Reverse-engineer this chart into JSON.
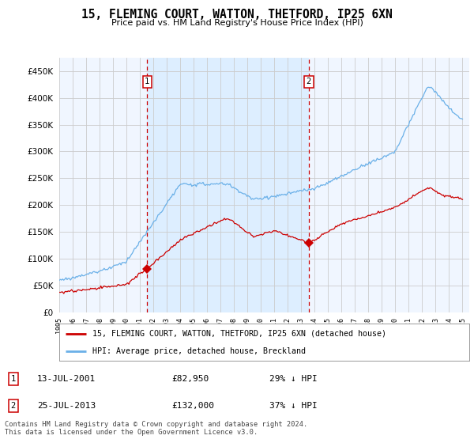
{
  "title": "15, FLEMING COURT, WATTON, THETFORD, IP25 6XN",
  "subtitle": "Price paid vs. HM Land Registry's House Price Index (HPI)",
  "legend_line1": "15, FLEMING COURT, WATTON, THETFORD, IP25 6XN (detached house)",
  "legend_line2": "HPI: Average price, detached house, Breckland",
  "annotation1": {
    "num": "1",
    "date": "13-JUL-2001",
    "price": "£82,950",
    "note": "29% ↓ HPI"
  },
  "annotation2": {
    "num": "2",
    "date": "25-JUL-2013",
    "price": "£132,000",
    "note": "37% ↓ HPI"
  },
  "footer": "Contains HM Land Registry data © Crown copyright and database right 2024.\nThis data is licensed under the Open Government Licence v3.0.",
  "hpi_color": "#6ab0e8",
  "price_color": "#cc0000",
  "background_color": "#f0f6ff",
  "shade_color": "#ddeeff",
  "annotation_line_color": "#cc0000",
  "grid_color": "#cccccc",
  "ylim": [
    0,
    475000
  ],
  "yticks": [
    0,
    50000,
    100000,
    150000,
    200000,
    250000,
    300000,
    350000,
    400000,
    450000
  ],
  "sale1_year": 2001.54,
  "sale1_price": 82950,
  "sale2_year": 2013.56,
  "sale2_price": 132000
}
